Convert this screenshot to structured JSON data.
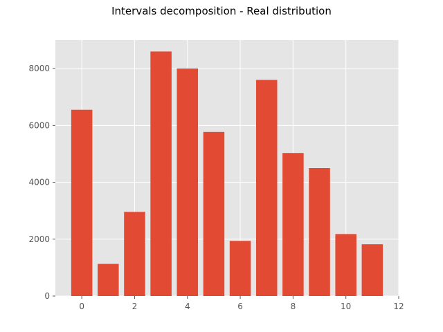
{
  "chart_data": {
    "type": "bar",
    "title": "Intervals decomposition - Real distribution",
    "xlabel": "",
    "ylabel": "",
    "x": [
      0,
      1,
      2,
      3,
      4,
      5,
      6,
      7,
      8,
      9,
      10,
      11
    ],
    "values": [
      6550,
      1130,
      2960,
      8600,
      8000,
      5770,
      1940,
      7600,
      5030,
      4500,
      2180,
      1820
    ],
    "xlim": [
      -1,
      12
    ],
    "ylim": [
      0,
      9000
    ],
    "xticks": [
      0,
      2,
      4,
      6,
      8,
      10,
      12
    ],
    "yticks": [
      0,
      2000,
      4000,
      6000,
      8000
    ],
    "xtick_labels": [
      "0",
      "2",
      "4",
      "6",
      "8",
      "10",
      "12"
    ],
    "ytick_labels": [
      "0",
      "2000",
      "4000",
      "6000",
      "8000"
    ],
    "grid": true,
    "style": "ggplot",
    "colors": {
      "bar": "#E24A33",
      "background": "#E5E5E5",
      "grid": "#FFFFFF",
      "tick_text": "#555555"
    }
  }
}
